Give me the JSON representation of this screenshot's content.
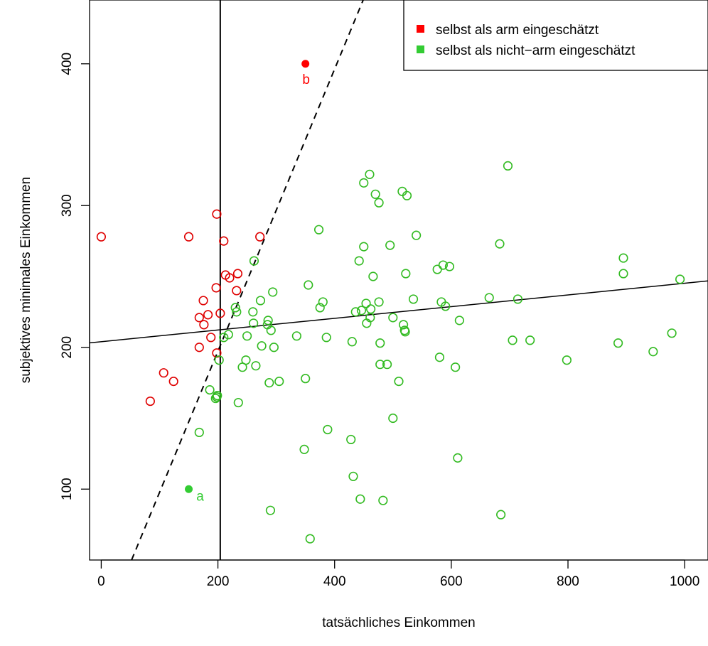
{
  "chart_data": {
    "type": "scatter",
    "title": "",
    "xlabel": "tatsächliches Einkommen",
    "ylabel": "subjektives minimales Einkommen",
    "xlim": [
      -20,
      1040
    ],
    "ylim": [
      50,
      445
    ],
    "xticks": [
      0,
      200,
      400,
      600,
      800,
      1000
    ],
    "yticks": [
      100,
      200,
      300,
      400
    ],
    "grid": false,
    "legend_position": "top-right",
    "colors": {
      "arm": "#df0000",
      "nicht_arm": "#33bb22",
      "arm_fill": "#ff0000",
      "nicht_arm_fill": "#33cc33"
    },
    "legend": [
      {
        "label": "selbst als arm eingeschätzt",
        "color": "#ff0000"
      },
      {
        "label": "selbst als nicht−arm eingeschätzt",
        "color": "#33cc33"
      }
    ],
    "series": [
      {
        "name": "selbst als arm eingeschätzt",
        "points": [
          [
            0,
            278
          ],
          [
            84,
            162
          ],
          [
            107,
            182
          ],
          [
            124,
            176
          ],
          [
            150,
            278
          ],
          [
            168,
            200
          ],
          [
            168,
            221
          ],
          [
            175,
            233
          ],
          [
            176,
            216
          ],
          [
            183,
            223
          ],
          [
            188,
            207
          ],
          [
            198,
            294
          ],
          [
            197,
            242
          ],
          [
            198,
            196
          ],
          [
            204,
            224
          ],
          [
            210,
            275
          ],
          [
            213,
            251
          ],
          [
            220,
            249
          ],
          [
            232,
            240
          ],
          [
            234,
            252
          ],
          [
            272,
            278
          ]
        ]
      },
      {
        "name": "selbst als nicht−arm eingeschätzt",
        "points": [
          [
            168,
            140
          ],
          [
            186,
            170
          ],
          [
            196,
            164
          ],
          [
            198,
            165
          ],
          [
            199,
            166
          ],
          [
            202,
            191
          ],
          [
            210,
            207
          ],
          [
            218,
            209
          ],
          [
            230,
            228
          ],
          [
            232,
            225
          ],
          [
            235,
            161
          ],
          [
            242,
            186
          ],
          [
            248,
            191
          ],
          [
            250,
            208
          ],
          [
            260,
            225
          ],
          [
            261,
            217
          ],
          [
            262,
            261
          ],
          [
            265,
            187
          ],
          [
            273,
            233
          ],
          [
            275,
            201
          ],
          [
            285,
            216
          ],
          [
            286,
            219
          ],
          [
            288,
            175
          ],
          [
            290,
            85
          ],
          [
            291,
            212
          ],
          [
            294,
            239
          ],
          [
            296,
            200
          ],
          [
            305,
            176
          ],
          [
            335,
            208
          ],
          [
            348,
            128
          ],
          [
            350,
            178
          ],
          [
            355,
            244
          ],
          [
            358,
            65
          ],
          [
            373,
            283
          ],
          [
            375,
            228
          ],
          [
            380,
            232
          ],
          [
            386,
            207
          ],
          [
            388,
            142
          ],
          [
            428,
            135
          ],
          [
            430,
            204
          ],
          [
            432,
            109
          ],
          [
            436,
            225
          ],
          [
            442,
            261
          ],
          [
            444,
            93
          ],
          [
            446,
            226
          ],
          [
            450,
            316
          ],
          [
            450,
            271
          ],
          [
            454,
            231
          ],
          [
            455,
            217
          ],
          [
            460,
            322
          ],
          [
            461,
            221
          ],
          [
            462,
            227
          ],
          [
            466,
            250
          ],
          [
            470,
            308
          ],
          [
            476,
            232
          ],
          [
            476,
            302
          ],
          [
            478,
            203
          ],
          [
            478,
            188
          ],
          [
            483,
            92
          ],
          [
            490,
            188
          ],
          [
            495,
            272
          ],
          [
            500,
            221
          ],
          [
            500,
            150
          ],
          [
            510,
            176
          ],
          [
            516,
            310
          ],
          [
            518,
            216
          ],
          [
            520,
            212
          ],
          [
            521,
            211
          ],
          [
            522,
            252
          ],
          [
            524,
            307
          ],
          [
            535,
            234
          ],
          [
            540,
            279
          ],
          [
            576,
            255
          ],
          [
            580,
            193
          ],
          [
            583,
            232
          ],
          [
            586,
            258
          ],
          [
            590,
            229
          ],
          [
            597,
            257
          ],
          [
            607,
            186
          ],
          [
            611,
            122
          ],
          [
            614,
            219
          ],
          [
            665,
            235
          ],
          [
            683,
            273
          ],
          [
            685,
            82
          ],
          [
            697,
            328
          ],
          [
            705,
            205
          ],
          [
            714,
            234
          ],
          [
            735,
            205
          ],
          [
            798,
            191
          ],
          [
            886,
            203
          ],
          [
            895,
            263
          ],
          [
            895,
            252
          ],
          [
            946,
            197
          ],
          [
            978,
            210
          ],
          [
            992,
            248
          ]
        ]
      }
    ],
    "highlighted_points": [
      {
        "label": "a",
        "x": 150,
        "y": 100,
        "group": "nicht_arm"
      },
      {
        "label": "b",
        "x": 350,
        "y": 400,
        "group": "arm"
      }
    ],
    "reference_lines": {
      "vertical_x": 204,
      "regression": {
        "intercept": 204.0,
        "slope": 0.0412
      },
      "dashed": {
        "x1": 52,
        "y1": 50,
        "x2": 449,
        "y2": 445
      }
    }
  }
}
